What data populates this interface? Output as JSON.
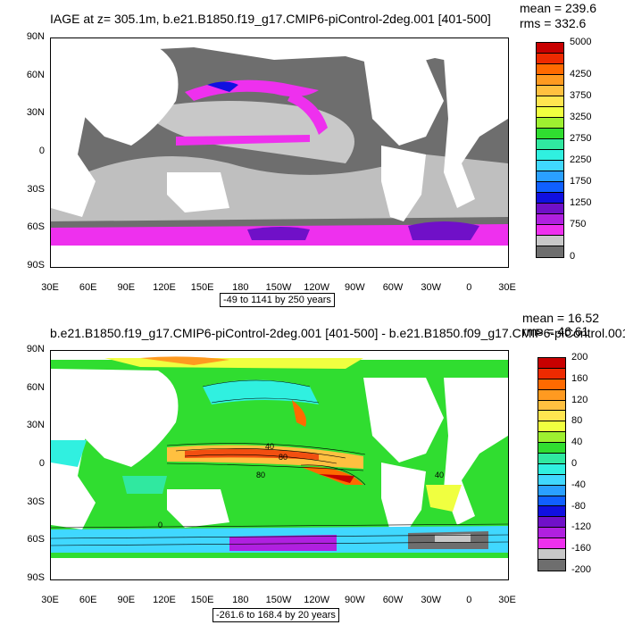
{
  "panel1": {
    "title": "IAGE at z= 305.1m, b.e21.B1850.f19_g17.CMIP6-piControl-2deg.001 [401-500]",
    "mean": "mean = 239.6",
    "rms": "rms = 332.6",
    "range": "-49 to 1141 by 250 years",
    "colorbar": {
      "colors": [
        "#c80000",
        "#ee2a00",
        "#ff6a00",
        "#ff9a20",
        "#ffc040",
        "#ffe550",
        "#f0ff40",
        "#9ef030",
        "#30dd30",
        "#30e8a0",
        "#30f0e0",
        "#40d8ff",
        "#2aa0ff",
        "#1060ff",
        "#1010e0",
        "#7010c8",
        "#b020e0",
        "#ee30ee",
        "#c8c8c8",
        "#6e6e6e"
      ],
      "labels": [
        {
          "text": "5000",
          "index": 0
        },
        {
          "text": "4250",
          "index": 3
        },
        {
          "text": "3750",
          "index": 5
        },
        {
          "text": "3250",
          "index": 7
        },
        {
          "text": "2750",
          "index": 9
        },
        {
          "text": "2250",
          "index": 11
        },
        {
          "text": "1750",
          "index": 13
        },
        {
          "text": "1250",
          "index": 15
        },
        {
          "text": "750",
          "index": 17
        },
        {
          "text": "0",
          "index": 20
        }
      ]
    }
  },
  "panel2": {
    "title": "b.e21.B1850.f19_g17.CMIP6-piControl-2deg.001 [401-500] - b.e21.B1850.f09_g17.CMIP6-piControl.001",
    "mean": "mean = 16.52",
    "rms": "rms = 46.61",
    "range": "-261.6 to 168.4 by 20 years",
    "colorbar": {
      "colors": [
        "#c80000",
        "#ee2a00",
        "#ff6a00",
        "#ff9a20",
        "#ffc040",
        "#ffe550",
        "#f0ff40",
        "#9ef030",
        "#30dd30",
        "#30e8a0",
        "#30f0e0",
        "#40d8ff",
        "#2aa0ff",
        "#1060ff",
        "#1010e0",
        "#7010c8",
        "#b020e0",
        "#ee30ee",
        "#c8c8c8",
        "#6e6e6e"
      ],
      "labels": [
        {
          "text": "200",
          "index": 0
        },
        {
          "text": "160",
          "index": 2
        },
        {
          "text": "120",
          "index": 4
        },
        {
          "text": "80",
          "index": 6
        },
        {
          "text": "40",
          "index": 8
        },
        {
          "text": "0",
          "index": 10
        },
        {
          "text": "-40",
          "index": 12
        },
        {
          "text": "-80",
          "index": 14
        },
        {
          "text": "-120",
          "index": 16
        },
        {
          "text": "-160",
          "index": 18
        },
        {
          "text": "-200",
          "index": 20
        }
      ]
    },
    "contour_labels": [
      "40",
      "80",
      "80",
      "40",
      "0"
    ]
  },
  "axes": {
    "lat": [
      "90N",
      "60N",
      "30N",
      "0",
      "30S",
      "60S",
      "90S"
    ],
    "lon": [
      "30E",
      "60E",
      "90E",
      "120E",
      "150E",
      "180",
      "150W",
      "120W",
      "90W",
      "60W",
      "30W",
      "0",
      "30E"
    ]
  }
}
